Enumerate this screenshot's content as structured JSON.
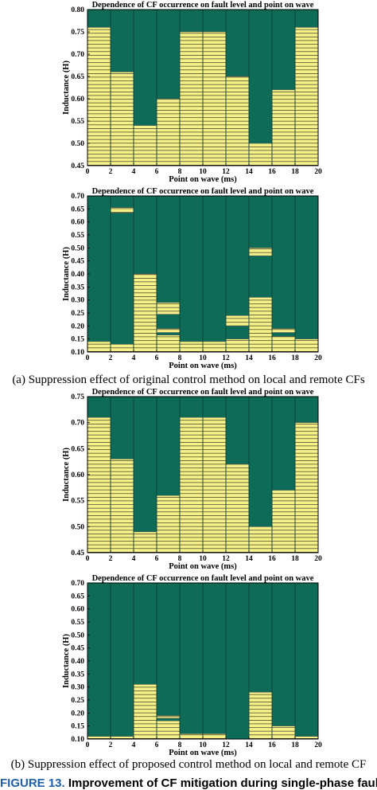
{
  "colors": {
    "safe": "#0d6b57",
    "cf": "#f5f087",
    "stripe": "#2a2a1a",
    "frame": "#000000"
  },
  "captions": {
    "a": "(a) Suppression effect of original control method on local and remote CFs",
    "b": "(b) Suppression effect of proposed control method on local and remote CF",
    "figure_number": "FIGURE 13.",
    "figure_text": "Improvement of CF mitigation during single-phase faults for"
  },
  "chart_data": [
    {
      "type": "bar",
      "title": "Dependence of CF occurrence on fault level and point on wave",
      "xlabel": "Point on wave (ms)",
      "ylabel": "Inductance (H)",
      "xlim": [
        0,
        20
      ],
      "ylim": [
        0.45,
        0.8
      ],
      "xticks": [
        0,
        2,
        4,
        6,
        8,
        10,
        12,
        14,
        16,
        18,
        20
      ],
      "yticks": [
        0.45,
        0.5,
        0.55,
        0.6,
        0.65,
        0.7,
        0.75,
        0.8
      ],
      "bins": [
        "0-2",
        "2-4",
        "4-6",
        "6-8",
        "8-10",
        "10-12",
        "12-14",
        "14-16",
        "16-18",
        "18-20"
      ],
      "cf_regions": [
        {
          "x": [
            0,
            2
          ],
          "y": [
            0.45,
            0.76
          ]
        },
        {
          "x": [
            2,
            4
          ],
          "y": [
            0.45,
            0.66
          ]
        },
        {
          "x": [
            4,
            6
          ],
          "y": [
            0.45,
            0.54
          ]
        },
        {
          "x": [
            6,
            8
          ],
          "y": [
            0.45,
            0.6
          ]
        },
        {
          "x": [
            8,
            10
          ],
          "y": [
            0.45,
            0.75
          ]
        },
        {
          "x": [
            10,
            12
          ],
          "y": [
            0.45,
            0.75
          ]
        },
        {
          "x": [
            12,
            14
          ],
          "y": [
            0.45,
            0.65
          ]
        },
        {
          "x": [
            14,
            16
          ],
          "y": [
            0.45,
            0.5
          ]
        },
        {
          "x": [
            16,
            18
          ],
          "y": [
            0.45,
            0.62
          ]
        },
        {
          "x": [
            18,
            20
          ],
          "y": [
            0.45,
            0.76
          ]
        }
      ]
    },
    {
      "type": "bar",
      "title": "Dependence of CF occurrence on fault level and point on wave",
      "xlabel": "Point on wave (ms)",
      "ylabel": "Inductance (H)",
      "xlim": [
        0,
        20
      ],
      "ylim": [
        0.1,
        0.7
      ],
      "xticks": [
        0,
        2,
        4,
        6,
        8,
        10,
        12,
        14,
        16,
        18,
        20
      ],
      "yticks": [
        0.1,
        0.15,
        0.2,
        0.25,
        0.3,
        0.35,
        0.4,
        0.45,
        0.5,
        0.55,
        0.6,
        0.65,
        0.7
      ],
      "cf_regions": [
        {
          "x": [
            0,
            2
          ],
          "y": [
            0.1,
            0.14
          ]
        },
        {
          "x": [
            2,
            4
          ],
          "y": [
            0.1,
            0.13
          ]
        },
        {
          "x": [
            2,
            4
          ],
          "y": [
            0.635,
            0.655
          ]
        },
        {
          "x": [
            4,
            6
          ],
          "y": [
            0.1,
            0.4
          ]
        },
        {
          "x": [
            6,
            8
          ],
          "y": [
            0.1,
            0.165
          ]
        },
        {
          "x": [
            6,
            8
          ],
          "y": [
            0.175,
            0.19
          ]
        },
        {
          "x": [
            6,
            8
          ],
          "y": [
            0.245,
            0.29
          ]
        },
        {
          "x": [
            8,
            10
          ],
          "y": [
            0.1,
            0.14
          ]
        },
        {
          "x": [
            10,
            12
          ],
          "y": [
            0.1,
            0.14
          ]
        },
        {
          "x": [
            12,
            14
          ],
          "y": [
            0.1,
            0.15
          ]
        },
        {
          "x": [
            12,
            14
          ],
          "y": [
            0.2,
            0.24
          ]
        },
        {
          "x": [
            14,
            16
          ],
          "y": [
            0.1,
            0.31
          ]
        },
        {
          "x": [
            14,
            16
          ],
          "y": [
            0.47,
            0.5
          ]
        },
        {
          "x": [
            16,
            18
          ],
          "y": [
            0.1,
            0.16
          ]
        },
        {
          "x": [
            16,
            18
          ],
          "y": [
            0.175,
            0.19
          ]
        },
        {
          "x": [
            18,
            20
          ],
          "y": [
            0.1,
            0.15
          ]
        }
      ]
    },
    {
      "type": "bar",
      "title": "Dependence of CF occurrence on fault level and point on wave",
      "xlabel": "Point on wave (ms)",
      "ylabel": "Inductance (H)",
      "xlim": [
        0,
        20
      ],
      "ylim": [
        0.45,
        0.75
      ],
      "xticks": [
        0,
        2,
        4,
        6,
        8,
        10,
        12,
        14,
        16,
        18,
        20
      ],
      "yticks": [
        0.45,
        0.5,
        0.55,
        0.6,
        0.65,
        0.7,
        0.75
      ],
      "cf_regions": [
        {
          "x": [
            0,
            2
          ],
          "y": [
            0.45,
            0.71
          ]
        },
        {
          "x": [
            2,
            4
          ],
          "y": [
            0.45,
            0.63
          ]
        },
        {
          "x": [
            4,
            6
          ],
          "y": [
            0.45,
            0.49
          ]
        },
        {
          "x": [
            6,
            8
          ],
          "y": [
            0.45,
            0.56
          ]
        },
        {
          "x": [
            8,
            10
          ],
          "y": [
            0.45,
            0.71
          ]
        },
        {
          "x": [
            10,
            12
          ],
          "y": [
            0.45,
            0.71
          ]
        },
        {
          "x": [
            12,
            14
          ],
          "y": [
            0.45,
            0.62
          ]
        },
        {
          "x": [
            14,
            16
          ],
          "y": [
            0.45,
            0.5
          ]
        },
        {
          "x": [
            16,
            18
          ],
          "y": [
            0.45,
            0.57
          ]
        },
        {
          "x": [
            18,
            20
          ],
          "y": [
            0.45,
            0.7
          ]
        }
      ]
    },
    {
      "type": "bar",
      "title": "Dependence of CF occurrence on fault level and point on wave",
      "xlabel": "Point on wave (ms)",
      "ylabel": "Inductance (H)",
      "xlim": [
        0,
        20
      ],
      "ylim": [
        0.1,
        0.7
      ],
      "xticks": [
        0,
        2,
        4,
        6,
        8,
        10,
        12,
        14,
        16,
        18,
        20
      ],
      "yticks": [
        0.1,
        0.15,
        0.2,
        0.25,
        0.3,
        0.35,
        0.4,
        0.45,
        0.5,
        0.55,
        0.6,
        0.65,
        0.7
      ],
      "cf_regions": [
        {
          "x": [
            0,
            2
          ],
          "y": [
            0.1,
            0.11
          ]
        },
        {
          "x": [
            2,
            4
          ],
          "y": [
            0.1,
            0.11
          ]
        },
        {
          "x": [
            4,
            6
          ],
          "y": [
            0.1,
            0.31
          ]
        },
        {
          "x": [
            6,
            8
          ],
          "y": [
            0.1,
            0.17
          ]
        },
        {
          "x": [
            6,
            8
          ],
          "y": [
            0.18,
            0.19
          ]
        },
        {
          "x": [
            8,
            10
          ],
          "y": [
            0.1,
            0.12
          ]
        },
        {
          "x": [
            10,
            12
          ],
          "y": [
            0.1,
            0.12
          ]
        },
        {
          "x": [
            14,
            16
          ],
          "y": [
            0.1,
            0.28
          ]
        },
        {
          "x": [
            16,
            18
          ],
          "y": [
            0.1,
            0.15
          ]
        },
        {
          "x": [
            18,
            20
          ],
          "y": [
            0.1,
            0.11
          ]
        }
      ]
    }
  ]
}
